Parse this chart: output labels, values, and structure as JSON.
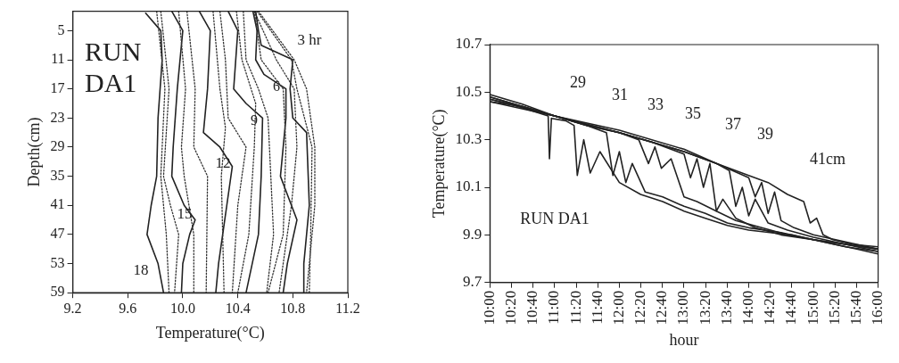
{
  "chart_data": [
    {
      "type": "line",
      "xlabel": "Temperature(°C)",
      "ylabel": "Depth(cm)",
      "xlim": [
        9.2,
        11.2
      ],
      "xticks": [
        {
          "value": 9.2,
          "label": "9.2"
        },
        {
          "value": 9.6,
          "label": "9.6"
        },
        {
          "value": 10.0,
          "label": "10.0"
        },
        {
          "value": 10.4,
          "label": "10.4"
        },
        {
          "value": 10.8,
          "label": "10.8"
        },
        {
          "value": 11.2,
          "label": "11.2"
        }
      ],
      "ylim": [
        59,
        1
      ],
      "yticks": [
        5,
        11,
        17,
        23,
        29,
        35,
        41,
        47,
        53,
        59
      ],
      "grid": false,
      "legend": false,
      "marker": "none",
      "annotations": [
        "RUN DA1",
        "3 hr",
        "6",
        "9",
        "12",
        "15",
        "18"
      ],
      "series": [
        {
          "color": "#333333",
          "line_style": "dotted",
          "x": [
            10.55,
            10.81,
            10.9,
            10.96,
            10.96,
            10.9
          ],
          "values": [
            1,
            11,
            17,
            29,
            41,
            59
          ]
        },
        {
          "color": "#333333",
          "line_style": "dotted",
          "x": [
            10.54,
            10.79,
            10.83,
            10.94,
            10.93,
            10.92
          ],
          "values": [
            1,
            11,
            17,
            29,
            47,
            59
          ]
        },
        {
          "color": "#222222",
          "line_style": "solid",
          "x": [
            10.53,
            10.55,
            10.57,
            10.8,
            10.78,
            10.8,
            10.9,
            10.92,
            10.88,
            10.88
          ],
          "values": [
            1,
            5,
            8,
            11,
            17,
            23,
            26,
            41,
            53,
            59
          ]
        },
        {
          "color": "#333333",
          "line_style": "dotted",
          "x": [
            10.52,
            10.68,
            10.81,
            10.83,
            10.79,
            10.7
          ],
          "values": [
            1,
            11,
            17,
            29,
            41,
            59
          ]
        },
        {
          "color": "#333333",
          "line_style": "dotted",
          "x": [
            10.52,
            10.57,
            10.73,
            10.75,
            10.73,
            10.62
          ],
          "values": [
            1,
            11,
            17,
            29,
            47,
            59
          ]
        },
        {
          "color": "#222222",
          "line_style": "solid",
          "x": [
            10.51,
            10.54,
            10.53,
            10.59,
            10.75,
            10.75,
            10.71,
            10.75,
            10.83,
            10.76,
            10.73
          ],
          "values": [
            1,
            5,
            11,
            14,
            17,
            23,
            35,
            38,
            44,
            53,
            59
          ]
        },
        {
          "color": "#333333",
          "line_style": "dotted",
          "x": [
            10.44,
            10.46,
            10.55,
            10.62,
            10.66,
            10.61
          ],
          "values": [
            1,
            11,
            17,
            23,
            47,
            59
          ]
        },
        {
          "color": "#333333",
          "line_style": "dotted",
          "x": [
            10.39,
            10.43,
            10.53,
            10.52,
            10.48,
            10.4
          ],
          "values": [
            1,
            11,
            20,
            29,
            47,
            59
          ]
        },
        {
          "color": "#222222",
          "line_style": "solid",
          "x": [
            10.33,
            10.4,
            10.37,
            10.46,
            10.58,
            10.57,
            10.55,
            10.46
          ],
          "values": [
            1,
            5,
            17,
            20,
            23,
            35,
            47,
            59
          ]
        },
        {
          "color": "#333333",
          "line_style": "dotted",
          "x": [
            10.27,
            10.31,
            10.33,
            10.46,
            10.4,
            10.36
          ],
          "values": [
            1,
            11,
            23,
            29,
            41,
            59
          ]
        },
        {
          "color": "#333333",
          "line_style": "dotted",
          "x": [
            10.22,
            10.27,
            10.31,
            10.28,
            10.3
          ],
          "values": [
            1,
            17,
            25,
            35,
            59
          ]
        },
        {
          "color": "#222222",
          "line_style": "solid",
          "x": [
            10.12,
            10.2,
            10.18,
            10.16,
            10.15,
            10.27,
            10.36,
            10.32,
            10.26,
            10.24
          ],
          "values": [
            1,
            5,
            17,
            23,
            26,
            29,
            33,
            41,
            53,
            59
          ]
        },
        {
          "color": "#333333",
          "line_style": "dotted",
          "x": [
            10.03,
            10.09,
            10.08,
            10.18,
            10.17
          ],
          "values": [
            1,
            17,
            29,
            35,
            59
          ]
        },
        {
          "color": "#333333",
          "line_style": "dotted",
          "x": [
            9.97,
            10.02,
            9.99,
            10.01,
            10.08,
            10.08
          ],
          "values": [
            1,
            17,
            29,
            35,
            47,
            59
          ]
        },
        {
          "color": "#222222",
          "line_style": "solid",
          "x": [
            9.92,
            10.0,
            9.96,
            9.93,
            9.92,
            10.01,
            10.09,
            10.05,
            10.0,
            9.99
          ],
          "values": [
            1,
            5,
            17,
            29,
            35,
            41,
            44,
            47,
            53,
            59
          ]
        },
        {
          "color": "#333333",
          "line_style": "dotted",
          "x": [
            9.84,
            9.9,
            9.86,
            9.91,
            9.97,
            9.94
          ],
          "values": [
            1,
            17,
            35,
            41,
            47,
            59
          ]
        },
        {
          "color": "#333333",
          "line_style": "dotted",
          "x": [
            9.81,
            9.87,
            9.84,
            9.88,
            9.9
          ],
          "values": [
            1,
            17,
            35,
            47,
            59
          ]
        },
        {
          "color": "#222222",
          "line_style": "solid",
          "x": [
            9.73,
            9.84,
            9.85,
            9.82,
            9.81,
            9.77,
            9.74,
            9.82,
            9.86
          ],
          "values": [
            1.4,
            5,
            11,
            23,
            35,
            41,
            47,
            53,
            59
          ]
        }
      ]
    },
    {
      "type": "line",
      "xlabel": "hour",
      "ylabel": "Temperature(°C)",
      "xlim": [
        10,
        16
      ],
      "xticks": [
        {
          "value": 10,
          "label": "10:00"
        },
        {
          "value": 10.3333,
          "label": "10:20"
        },
        {
          "value": 10.6667,
          "label": "10:40"
        },
        {
          "value": 11,
          "label": "11:00"
        },
        {
          "value": 11.3333,
          "label": "11:20"
        },
        {
          "value": 11.6667,
          "label": "11:40"
        },
        {
          "value": 12,
          "label": "12:00"
        },
        {
          "value": 12.3333,
          "label": "12:20"
        },
        {
          "value": 12.6667,
          "label": "12:40"
        },
        {
          "value": 13,
          "label": "13:00"
        },
        {
          "value": 13.3333,
          "label": "13:20"
        },
        {
          "value": 13.6667,
          "label": "13:40"
        },
        {
          "value": 14,
          "label": "14:00"
        },
        {
          "value": 14.3333,
          "label": "14:20"
        },
        {
          "value": 14.6667,
          "label": "14:40"
        },
        {
          "value": 15,
          "label": "15:00"
        },
        {
          "value": 15.3333,
          "label": "15:20"
        },
        {
          "value": 15.6667,
          "label": "15:40"
        },
        {
          "value": 16,
          "label": "16:00"
        }
      ],
      "ylim": [
        9.7,
        10.7
      ],
      "yticks": [
        9.7,
        9.9,
        10.1,
        10.3,
        10.5,
        10.7
      ],
      "grid": false,
      "legend": false,
      "marker": "none",
      "annotations": [
        "RUN DA1",
        "29",
        "31",
        "33",
        "35",
        "37",
        "39",
        "41cm"
      ],
      "series": [
        {
          "color": "#222222",
          "x": [
            10,
            10.33,
            10.67,
            10.9,
            10.92,
            10.95,
            11.17,
            11.3,
            11.35,
            11.45,
            11.55,
            11.7,
            12,
            12.33,
            12.67,
            13,
            13.33,
            13.67,
            14,
            14.33,
            14.67,
            15,
            15.33,
            15.67,
            16
          ],
          "values": [
            10.47,
            10.45,
            10.42,
            10.4,
            10.22,
            10.39,
            10.38,
            10.36,
            10.15,
            10.3,
            10.16,
            10.25,
            10.12,
            10.07,
            10.04,
            10.0,
            9.97,
            9.94,
            9.92,
            9.91,
            9.9,
            9.88,
            9.86,
            9.84,
            9.82
          ]
        },
        {
          "color": "#222222",
          "x": [
            10,
            10.5,
            11,
            11.5,
            11.8,
            11.9,
            12,
            12.1,
            12.2,
            12.4,
            12.67,
            13,
            13.33,
            13.67,
            14,
            14.5,
            15,
            15.5,
            16
          ],
          "values": [
            10.49,
            10.45,
            10.4,
            10.36,
            10.33,
            10.15,
            10.25,
            10.12,
            10.2,
            10.08,
            10.06,
            10.02,
            9.99,
            9.95,
            9.93,
            9.91,
            9.88,
            9.86,
            9.83
          ]
        },
        {
          "color": "#222222",
          "x": [
            10,
            10.5,
            11,
            11.5,
            12,
            12.3,
            12.45,
            12.55,
            12.65,
            12.8,
            13,
            13.2,
            13.5,
            13.8,
            14.2,
            14.6,
            15,
            15.5,
            16
          ],
          "values": [
            10.46,
            10.44,
            10.4,
            10.36,
            10.33,
            10.3,
            10.2,
            10.27,
            10.18,
            10.22,
            10.06,
            10.04,
            10.0,
            9.96,
            9.93,
            9.9,
            9.88,
            9.85,
            9.83
          ]
        },
        {
          "color": "#222222",
          "x": [
            10,
            10.5,
            11,
            11.5,
            12,
            12.5,
            13,
            13.1,
            13.2,
            13.3,
            13.4,
            13.5,
            13.6,
            13.8,
            14.1,
            14.5,
            15,
            15.5,
            16
          ],
          "values": [
            10.48,
            10.44,
            10.4,
            10.36,
            10.33,
            10.29,
            10.24,
            10.14,
            10.22,
            10.1,
            10.2,
            10.0,
            10.05,
            9.97,
            9.93,
            9.9,
            9.88,
            9.86,
            9.84
          ]
        },
        {
          "color": "#222222",
          "x": [
            10,
            11,
            12,
            12.5,
            13,
            13.5,
            13.7,
            13.8,
            13.9,
            14.0,
            14.1,
            14.3,
            14.6,
            15,
            15.5,
            16
          ],
          "values": [
            10.47,
            10.4,
            10.33,
            10.29,
            10.25,
            10.2,
            10.17,
            10.02,
            10.1,
            9.98,
            10.05,
            9.95,
            9.92,
            9.89,
            9.86,
            9.84
          ]
        },
        {
          "color": "#222222",
          "x": [
            10,
            11,
            12,
            13,
            13.5,
            14,
            14.1,
            14.2,
            14.3,
            14.4,
            14.5,
            14.7,
            15,
            15.5,
            16
          ],
          "values": [
            10.46,
            10.4,
            10.33,
            10.25,
            10.2,
            10.14,
            10.06,
            10.12,
            9.99,
            10.08,
            9.96,
            9.93,
            9.9,
            9.87,
            9.84
          ]
        },
        {
          "color": "#222222",
          "x": [
            10,
            11,
            12,
            13,
            13.5,
            14,
            14.3,
            14.6,
            14.85,
            14.95,
            15.05,
            15.15,
            15.3,
            15.6,
            16
          ],
          "values": [
            10.48,
            10.4,
            10.34,
            10.26,
            10.2,
            10.15,
            10.12,
            10.07,
            10.04,
            9.95,
            9.97,
            9.9,
            9.88,
            9.86,
            9.85
          ]
        }
      ]
    }
  ]
}
